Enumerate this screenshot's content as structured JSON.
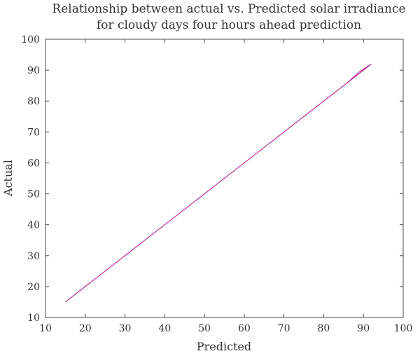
{
  "chart_data": {
    "type": "line",
    "title": "Relationship between actual vs. Predicted solar irradiance\nfor cloudy days four hours ahead prediction",
    "title_lines": [
      "Relationship between actual vs. Predicted solar irradiance",
      "for cloudy days four hours ahead prediction"
    ],
    "xlabel": "Predicted",
    "ylabel": "Actual",
    "xlim": [
      10,
      100
    ],
    "ylim": [
      10,
      100
    ],
    "xticks": [
      10,
      20,
      30,
      40,
      50,
      60,
      70,
      80,
      90,
      100
    ],
    "yticks": [
      10,
      20,
      30,
      40,
      50,
      60,
      70,
      80,
      90,
      100
    ],
    "grid": false,
    "legend": "none",
    "series": [
      {
        "color": "#c0309a",
        "x": [
          15,
          30,
          45,
          60,
          75,
          82,
          86,
          89,
          92,
          90,
          87,
          84,
          82
        ],
        "y": [
          15,
          30,
          45,
          60,
          75,
          82,
          86,
          89.5,
          92,
          90,
          87,
          84,
          82
        ]
      }
    ]
  }
}
